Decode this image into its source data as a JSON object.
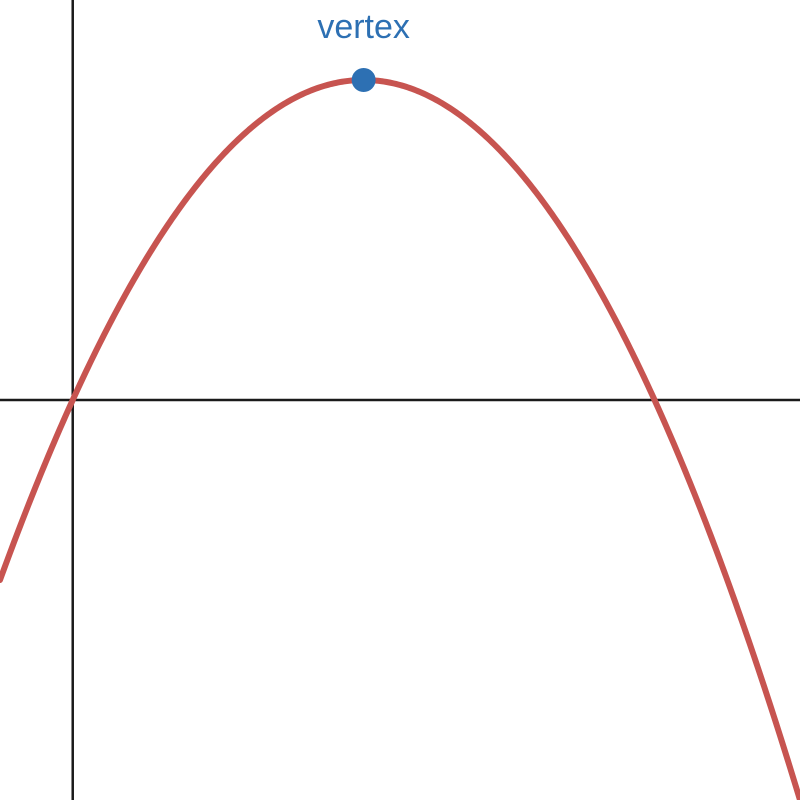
{
  "chart_data": {
    "type": "line",
    "title": "",
    "xlabel": "",
    "ylabel": "",
    "grid": false,
    "function": {
      "form": "vertex",
      "a": -1,
      "h": 2,
      "k": 4
    },
    "vertex": {
      "x": 2,
      "y": 4,
      "label": "vertex"
    },
    "x_intercepts": [
      0,
      4
    ],
    "xlim": [
      -0.5,
      5
    ],
    "ylim": [
      -5,
      5
    ],
    "colors": {
      "curve": "#c75450",
      "vertex": "#2d70b3",
      "axes": "#1a1a1a",
      "background": "#ffffff"
    }
  }
}
